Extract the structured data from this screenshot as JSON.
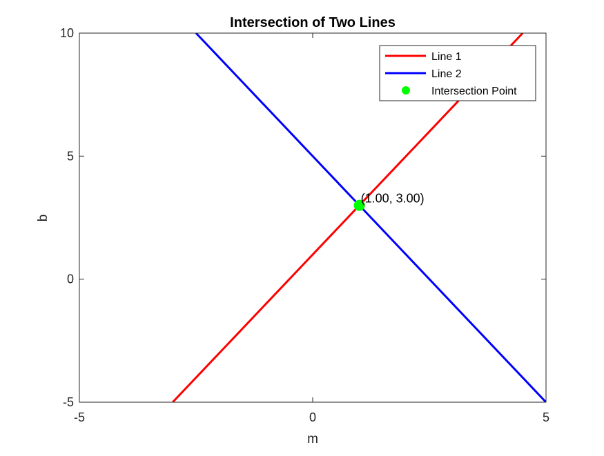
{
  "chart_data": {
    "type": "line",
    "title": "Intersection of Two Lines",
    "xlabel": "m",
    "ylabel": "b",
    "xlim": [
      -5,
      5
    ],
    "ylim": [
      -5,
      10
    ],
    "xticks": [
      -5,
      0,
      5
    ],
    "yticks": [
      -5,
      0,
      5,
      10
    ],
    "x_tick_labels": [
      "-5",
      "0",
      "5"
    ],
    "y_tick_labels": [
      "-5",
      "0",
      "5",
      "10"
    ],
    "grid": false,
    "legend_position": "top-right",
    "series": [
      {
        "name": "Line 1",
        "type": "line",
        "color": "#ff0000",
        "x": [
          -3,
          4.5
        ],
        "y": [
          -5,
          10
        ]
      },
      {
        "name": "Line 2",
        "type": "line",
        "color": "#0000ff",
        "x": [
          -2.5,
          5
        ],
        "y": [
          10,
          -5
        ]
      },
      {
        "name": "Intersection Point",
        "type": "scatter",
        "color": "#00ff00",
        "x": [
          1
        ],
        "y": [
          3
        ]
      }
    ],
    "annotations": [
      {
        "text": "(1.00, 3.00)",
        "x": 1,
        "y": 3
      }
    ]
  }
}
